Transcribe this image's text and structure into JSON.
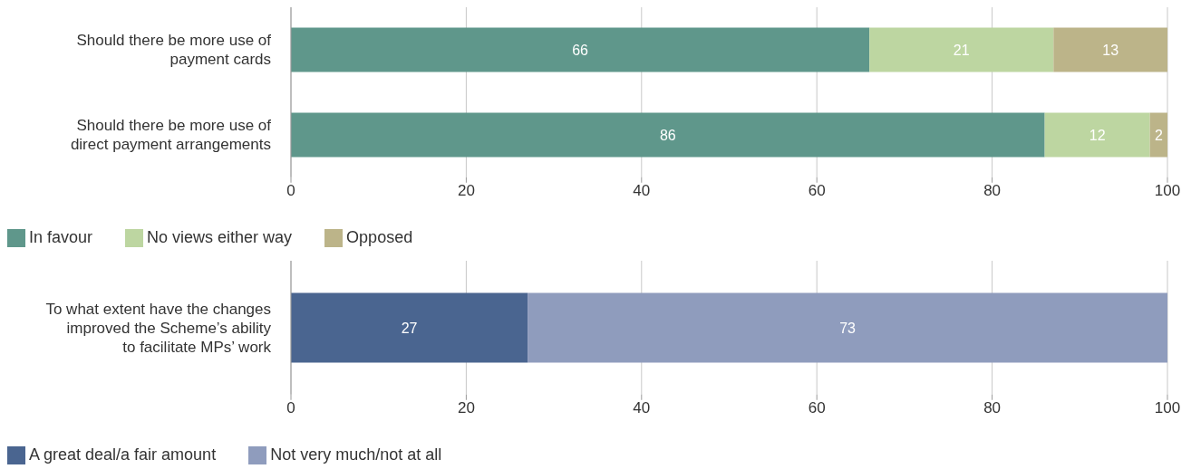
{
  "chart_data": [
    {
      "type": "bar",
      "orientation": "horizontal",
      "stacked": true,
      "categories": [
        "Should there be more use of payment cards",
        "Should there be more use of direct payment arrangements"
      ],
      "series": [
        {
          "name": "In favour",
          "color": "#5f978b",
          "values": [
            66,
            86
          ]
        },
        {
          "name": "No views either way",
          "color": "#bdd6a1",
          "values": [
            21,
            12
          ]
        },
        {
          "name": "Opposed",
          "color": "#bcb489",
          "values": [
            13,
            2
          ]
        }
      ],
      "xlim": [
        0,
        100
      ],
      "xticks": [
        0,
        20,
        40,
        60,
        80,
        100
      ],
      "grid": "x",
      "legend": "bottom left",
      "data_labels": true
    },
    {
      "type": "bar",
      "orientation": "horizontal",
      "stacked": true,
      "categories": [
        "To what extent have the changes improved the Scheme’s ability to facilitate MPs’ work"
      ],
      "series": [
        {
          "name": "A great deal/a fair amount",
          "color": "#4a6590",
          "values": [
            27
          ]
        },
        {
          "name": "Not very much/not at all",
          "color": "#8f9cbd",
          "values": [
            73
          ]
        }
      ],
      "xlim": [
        0,
        100
      ],
      "xticks": [
        0,
        20,
        40,
        60,
        80,
        100
      ],
      "grid": "x",
      "legend": "bottom left",
      "data_labels": true
    }
  ]
}
